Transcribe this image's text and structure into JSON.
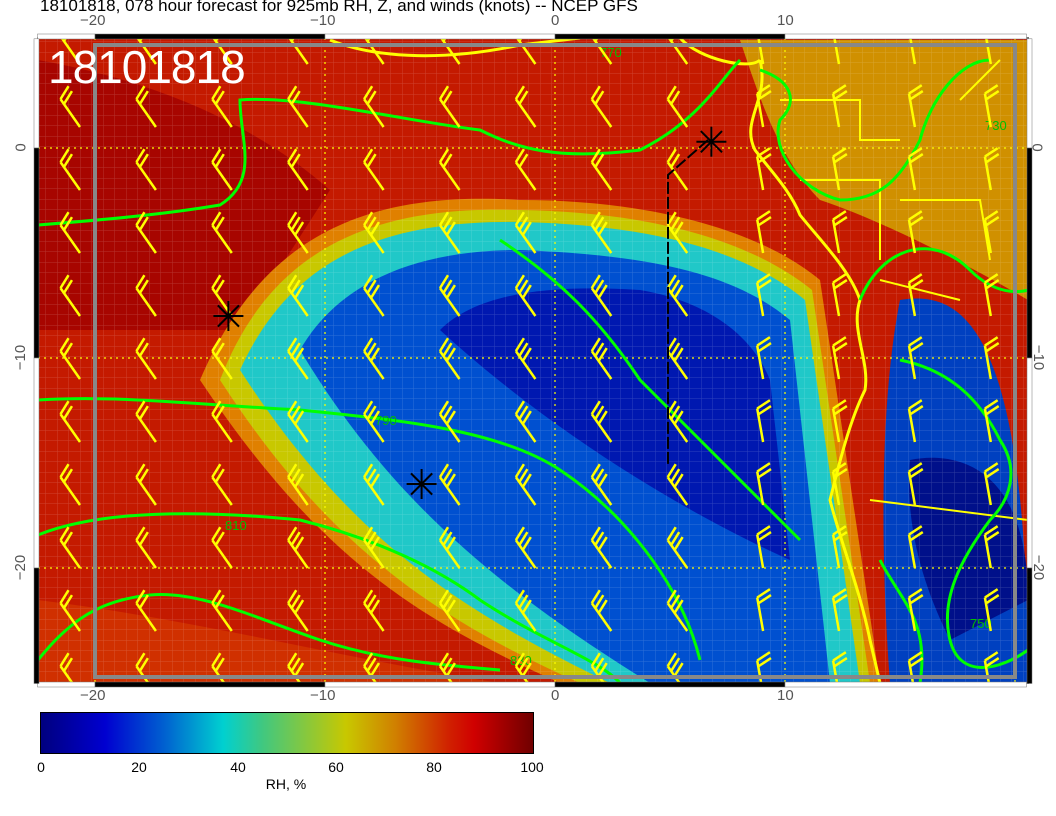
{
  "title": "18101818, 078 hour forecast for 925mb RH, Z, and winds (knots) -- NCEP GFS",
  "timestamp_label": "18101818",
  "axes": {
    "lon_ticks": [
      "−20",
      "−10",
      "0",
      "10"
    ],
    "lat_ticks": [
      "0",
      "−10",
      "−20"
    ]
  },
  "contour_labels": [
    "770",
    "790",
    "810",
    "830",
    "750",
    "730"
  ],
  "markers": [
    {
      "lon": -14.2,
      "lat": -8.0
    },
    {
      "lon": -5.8,
      "lat": -16.0
    },
    {
      "lon": 6.8,
      "lat": 0.3
    }
  ],
  "colorbar": {
    "ticks": [
      "0",
      "20",
      "40",
      "60",
      "80",
      "100"
    ],
    "label": "RH, %",
    "colors": [
      "#00007f",
      "#0000d0",
      "#00d0d0",
      "#c8c800",
      "#d00000",
      "#700000"
    ]
  },
  "colors": {
    "barbs": "#ffff00",
    "contours": "#00ff00",
    "coast": "#ffff00"
  }
}
